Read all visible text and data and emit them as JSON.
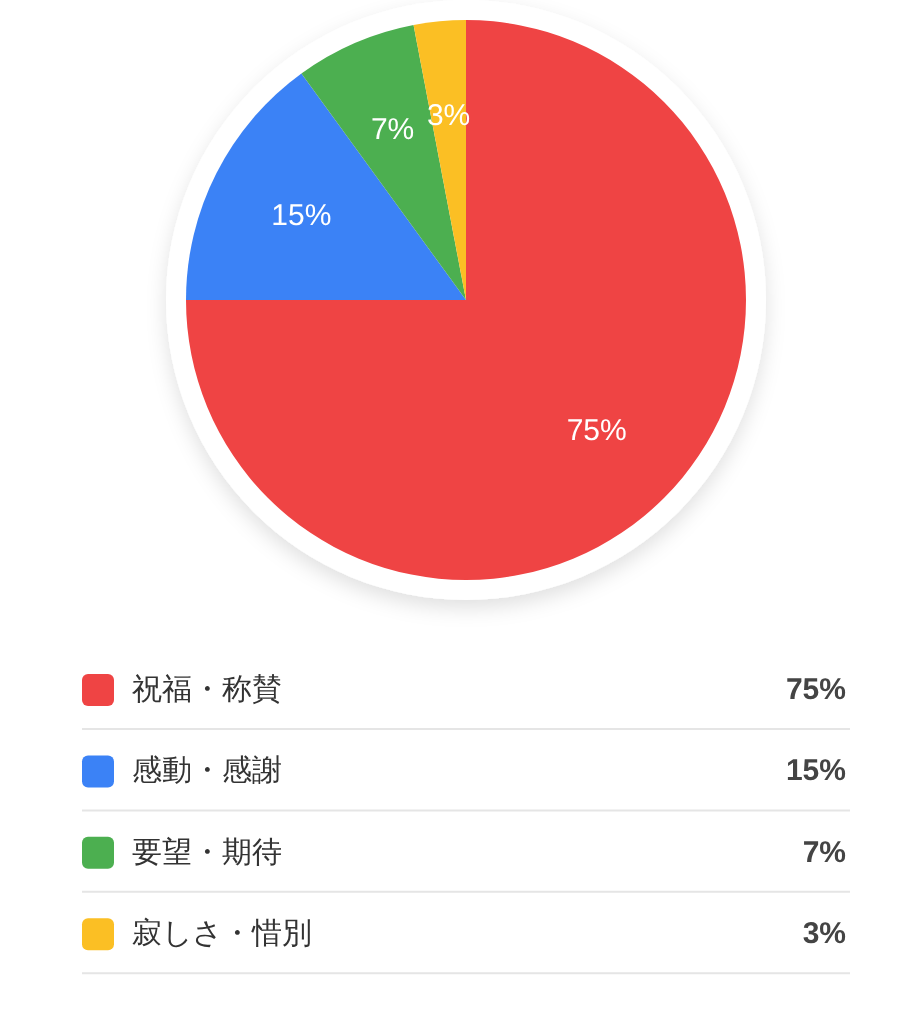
{
  "chart_data": {
    "type": "pie",
    "categories": [
      "祝福・称賛",
      "感動・感謝",
      "要望・期待",
      "寂しさ・惜別"
    ],
    "values": [
      75,
      15,
      7,
      3
    ],
    "value_labels": [
      "75%",
      "15%",
      "7%",
      "3%"
    ],
    "colors": [
      "#ef4444",
      "#3b82f6",
      "#4caf50",
      "#fbbf24"
    ],
    "legend": "bottom"
  }
}
